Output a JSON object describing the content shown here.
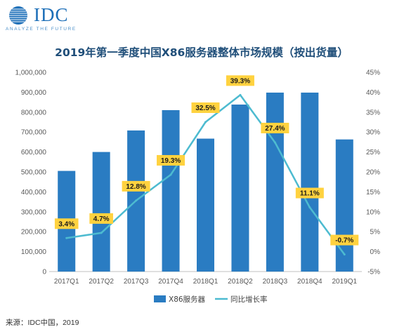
{
  "brand": {
    "name": "IDC",
    "tagline": "ANALYZE THE FUTURE"
  },
  "footer": {
    "source": "来源：IDC中国，2019"
  },
  "colors": {
    "bar": "#2a7cc2",
    "line": "#4dbbd0",
    "label_bg": "#ffd23f",
    "title": "#1f4e79",
    "grid": "#d9d9d9"
  },
  "chart_data": {
    "type": "bar",
    "title": "2019年第一季度中国X86服务器整体市场规模（按出货量）",
    "categories": [
      "2017Q1",
      "2017Q2",
      "2017Q3",
      "2017Q4",
      "2018Q1",
      "2018Q2",
      "2018Q3",
      "2018Q4",
      "2019Q1"
    ],
    "series": [
      {
        "name": "X86服务器",
        "type": "bar",
        "axis": "left",
        "values": [
          505000,
          600000,
          708000,
          810000,
          667000,
          838000,
          898000,
          898000,
          663000
        ]
      },
      {
        "name": "同比增长率",
        "type": "line",
        "axis": "right",
        "values": [
          3.4,
          4.7,
          12.8,
          19.3,
          32.5,
          39.3,
          27.4,
          11.1,
          -0.7
        ],
        "labels": [
          "3.4%",
          "4.7%",
          "12.8%",
          "19.3%",
          "32.5%",
          "39.3%",
          "27.4%",
          "11.1%",
          "-0.7%"
        ]
      }
    ],
    "y_left": {
      "ylim": [
        0,
        1000000
      ],
      "ticks": [
        "0",
        "100,000",
        "200,000",
        "300,000",
        "400,000",
        "500,000",
        "600,000",
        "700,000",
        "800,000",
        "900,000",
        "1,000,000"
      ]
    },
    "y_right": {
      "ylim": [
        -5,
        45
      ],
      "ticks": [
        "-5%",
        "0%",
        "5%",
        "10%",
        "15%",
        "20%",
        "25%",
        "30%",
        "35%",
        "40%",
        "45%"
      ]
    },
    "grid": false,
    "legend": "bottom"
  }
}
